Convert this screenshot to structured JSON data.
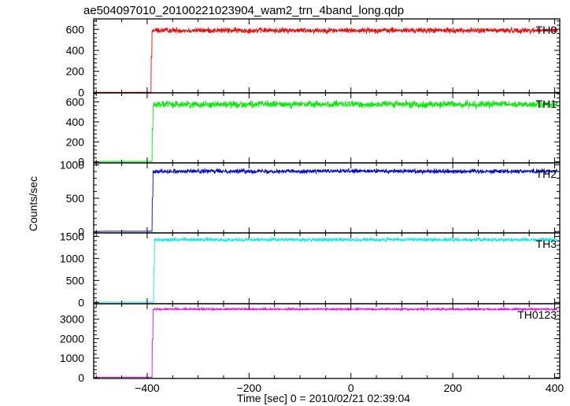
{
  "chart_data": {
    "type": "line",
    "title": "ae504097010_20100221023904_wam2_trn_4band_long.qdp",
    "xlabel": "Time [sec] 0 = 2010/02/21 02:39:04",
    "ylabel": "Counts/sec",
    "xlim": [
      -505,
      410
    ],
    "x_ticks": [
      -400,
      -200,
      0,
      200,
      400
    ],
    "x_tick_labels": [
      "−400",
      "−200",
      "0",
      "200",
      "400"
    ],
    "grid": false,
    "legend": "none",
    "panels": [
      {
        "name": "TH0",
        "color": "#ff0000",
        "ylim": [
          -5,
          700
        ],
        "y_ticks": [
          0,
          200,
          400,
          600
        ],
        "y_tick_labels": [
          "0",
          "200",
          "400",
          "600"
        ],
        "pre_level": 0,
        "post_level": 590,
        "onset_x": -392,
        "noise": 22
      },
      {
        "name": "TH1",
        "color": "#00ee00",
        "ylim": [
          -10,
          690
        ],
        "y_ticks": [
          0,
          200,
          400,
          600
        ],
        "y_tick_labels": [
          "0",
          "200",
          "400",
          "600"
        ],
        "pre_level": 5,
        "post_level": 575,
        "onset_x": -390,
        "noise": 30
      },
      {
        "name": "TH2",
        "color": "#0000dd",
        "ylim": [
          -20,
          1030
        ],
        "y_ticks": [
          0,
          500,
          1000
        ],
        "y_tick_labels": [
          "0",
          "500",
          "1000"
        ],
        "pre_level": 5,
        "post_level": 905,
        "onset_x": -390,
        "noise": 28
      },
      {
        "name": "TH3",
        "color": "#00eeee",
        "ylim": [
          -30,
          1580
        ],
        "y_ticks": [
          0,
          500,
          1000,
          1500
        ],
        "y_tick_labels": [
          "0",
          "500",
          "1000",
          "1500"
        ],
        "pre_level": 5,
        "post_level": 1425,
        "onset_x": -387,
        "noise": 35
      },
      {
        "name": "TH0123",
        "color": "#ee00ee",
        "ylim": [
          -50,
          3800
        ],
        "y_ticks": [
          0,
          1000,
          2000,
          3000
        ],
        "y_tick_labels": [
          "0",
          "1000",
          "2000",
          "3000"
        ],
        "pre_level": 10,
        "post_level": 3520,
        "onset_x": -390,
        "noise": 45
      }
    ]
  }
}
